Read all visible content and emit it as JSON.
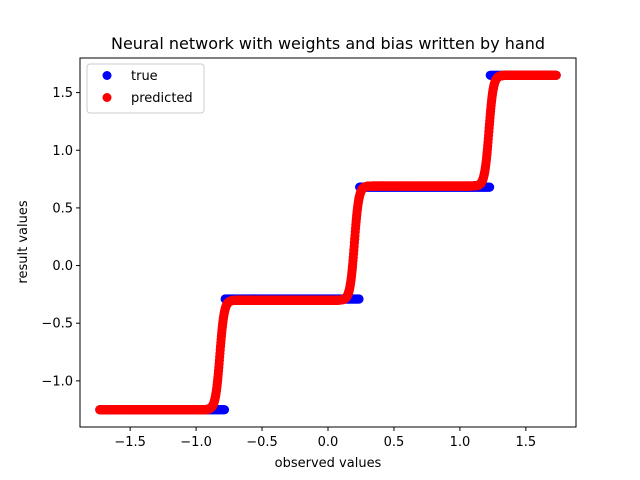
{
  "chart_data": {
    "type": "scatter",
    "title": "Neural network with weights and bias written by hand",
    "xlabel": "observed values",
    "ylabel": "result values",
    "xlim": [
      -1.88,
      1.88
    ],
    "ylim": [
      -1.4,
      1.8
    ],
    "xticks": [
      -1.5,
      -1.0,
      -0.5,
      0.0,
      0.5,
      1.0,
      1.5
    ],
    "xtick_labels": [
      "−1.5",
      "−1.0",
      "−0.5",
      "0.0",
      "0.5",
      "1.0",
      "1.5"
    ],
    "yticks": [
      -1.0,
      -0.5,
      0.0,
      0.5,
      1.0,
      1.5
    ],
    "ytick_labels": [
      "−1.0",
      "−0.5",
      "0.0",
      "0.5",
      "1.0",
      "1.5"
    ],
    "legend_position": "upper-left",
    "grid": false,
    "series": [
      {
        "name": "true",
        "color": "#0000ff",
        "x_range": [
          -1.73,
          1.73
        ],
        "steps": [
          {
            "x_from": -1.73,
            "x_to": -0.78,
            "y": -1.25
          },
          {
            "x_from": -0.78,
            "x_to": 0.24,
            "y": -0.29
          },
          {
            "x_from": 0.24,
            "x_to": 1.23,
            "y": 0.68
          },
          {
            "x_from": 1.23,
            "x_to": 1.73,
            "y": 1.65
          }
        ]
      },
      {
        "name": "predicted",
        "color": "#ff0000",
        "x_range": [
          -1.73,
          1.73
        ],
        "base_y": -1.25,
        "transitions": [
          {
            "center_x": -0.82,
            "rise": 0.95
          },
          {
            "center_x": 0.2,
            "rise": 0.99
          },
          {
            "center_x": 1.22,
            "rise": 0.96
          }
        ]
      }
    ]
  }
}
